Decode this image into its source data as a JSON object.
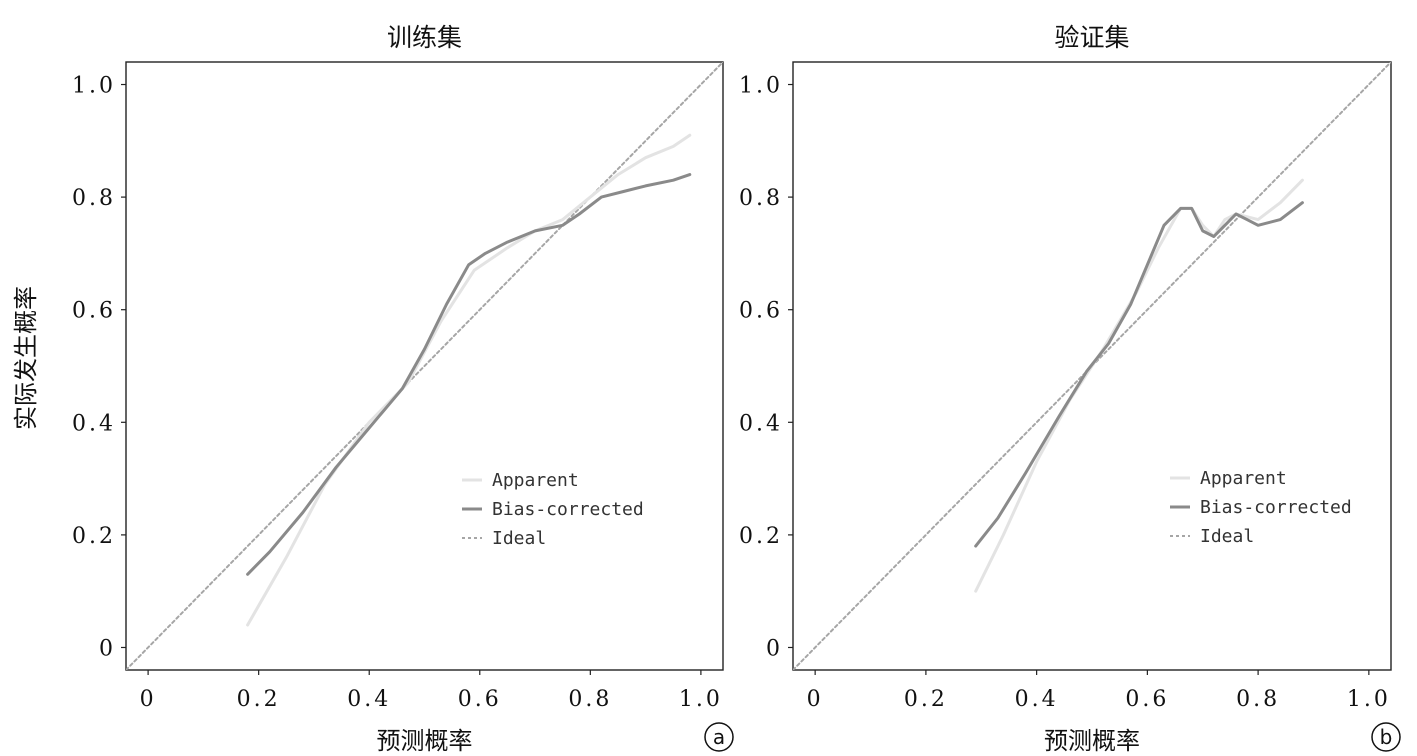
{
  "ylabel": "实际发生概率",
  "chart_data": [
    {
      "type": "line",
      "title": "训练集",
      "xlabel": "预测概率",
      "ylabel": "实际发生概率",
      "badge": "a",
      "xlim": [
        -0.04,
        1.04
      ],
      "ylim": [
        -0.04,
        1.04
      ],
      "x_ticks": [
        0,
        0.2,
        0.4,
        0.6,
        0.8,
        1.0
      ],
      "x_tick_labels": [
        "0",
        "0.2",
        "0.4",
        "0.6",
        "0.8",
        "1.0"
      ],
      "y_ticks": [
        0,
        0.2,
        0.4,
        0.6,
        0.8,
        1.0
      ],
      "y_tick_labels": [
        "0",
        "0.2",
        "0.4",
        "0.6",
        "0.8",
        "1.0"
      ],
      "grid": false,
      "legend": "bottom-right",
      "series": [
        {
          "name": "Apparent",
          "color": "#e3e3e3",
          "dash": "solid",
          "x": [
            0.18,
            0.25,
            0.32,
            0.4,
            0.47,
            0.53,
            0.59,
            0.65,
            0.7,
            0.75,
            0.8,
            0.85,
            0.9,
            0.95,
            0.98
          ],
          "y": [
            0.04,
            0.16,
            0.29,
            0.4,
            0.47,
            0.58,
            0.67,
            0.71,
            0.74,
            0.76,
            0.8,
            0.84,
            0.87,
            0.89,
            0.91
          ]
        },
        {
          "name": "Bias-corrected",
          "color": "#8a8a8a",
          "dash": "solid",
          "x": [
            0.18,
            0.22,
            0.28,
            0.34,
            0.4,
            0.46,
            0.5,
            0.54,
            0.58,
            0.61,
            0.65,
            0.7,
            0.75,
            0.78,
            0.82,
            0.86,
            0.9,
            0.95,
            0.98
          ],
          "y": [
            0.13,
            0.17,
            0.24,
            0.32,
            0.39,
            0.46,
            0.53,
            0.61,
            0.68,
            0.7,
            0.72,
            0.74,
            0.75,
            0.77,
            0.8,
            0.81,
            0.82,
            0.83,
            0.84
          ]
        },
        {
          "name": "Ideal",
          "color": "#a6a6a6",
          "dash": "dotted",
          "x": [
            -0.04,
            1.04
          ],
          "y": [
            -0.04,
            1.04
          ]
        }
      ]
    },
    {
      "type": "line",
      "title": "验证集",
      "xlabel": "预测概率",
      "ylabel": "",
      "badge": "b",
      "xlim": [
        -0.04,
        1.04
      ],
      "ylim": [
        -0.04,
        1.04
      ],
      "x_ticks": [
        0,
        0.2,
        0.4,
        0.6,
        0.8,
        1.0
      ],
      "x_tick_labels": [
        "0",
        "0.2",
        "0.4",
        "0.6",
        "0.8",
        "1.0"
      ],
      "y_ticks": [
        0,
        0.2,
        0.4,
        0.6,
        0.8,
        1.0
      ],
      "y_tick_labels": [
        "0",
        "0.2",
        "0.4",
        "0.6",
        "0.8",
        "1.0"
      ],
      "grid": false,
      "legend": "bottom-right",
      "series": [
        {
          "name": "Apparent",
          "color": "#e3e3e3",
          "dash": "solid",
          "x": [
            0.29,
            0.34,
            0.4,
            0.46,
            0.52,
            0.58,
            0.62,
            0.66,
            0.68,
            0.7,
            0.72,
            0.74,
            0.76,
            0.8,
            0.84,
            0.88
          ],
          "y": [
            0.1,
            0.2,
            0.33,
            0.44,
            0.53,
            0.63,
            0.71,
            0.78,
            0.78,
            0.75,
            0.73,
            0.76,
            0.77,
            0.76,
            0.79,
            0.83
          ]
        },
        {
          "name": "Bias-corrected",
          "color": "#8a8a8a",
          "dash": "solid",
          "x": [
            0.29,
            0.33,
            0.38,
            0.44,
            0.49,
            0.53,
            0.57,
            0.6,
            0.63,
            0.66,
            0.68,
            0.7,
            0.72,
            0.74,
            0.76,
            0.78,
            0.8,
            0.84,
            0.88
          ],
          "y": [
            0.18,
            0.23,
            0.31,
            0.41,
            0.49,
            0.54,
            0.61,
            0.68,
            0.75,
            0.78,
            0.78,
            0.74,
            0.73,
            0.75,
            0.77,
            0.76,
            0.75,
            0.76,
            0.79
          ]
        },
        {
          "name": "Ideal",
          "color": "#a6a6a6",
          "dash": "dotted",
          "x": [
            -0.04,
            1.04
          ],
          "y": [
            -0.04,
            1.04
          ]
        }
      ]
    }
  ]
}
